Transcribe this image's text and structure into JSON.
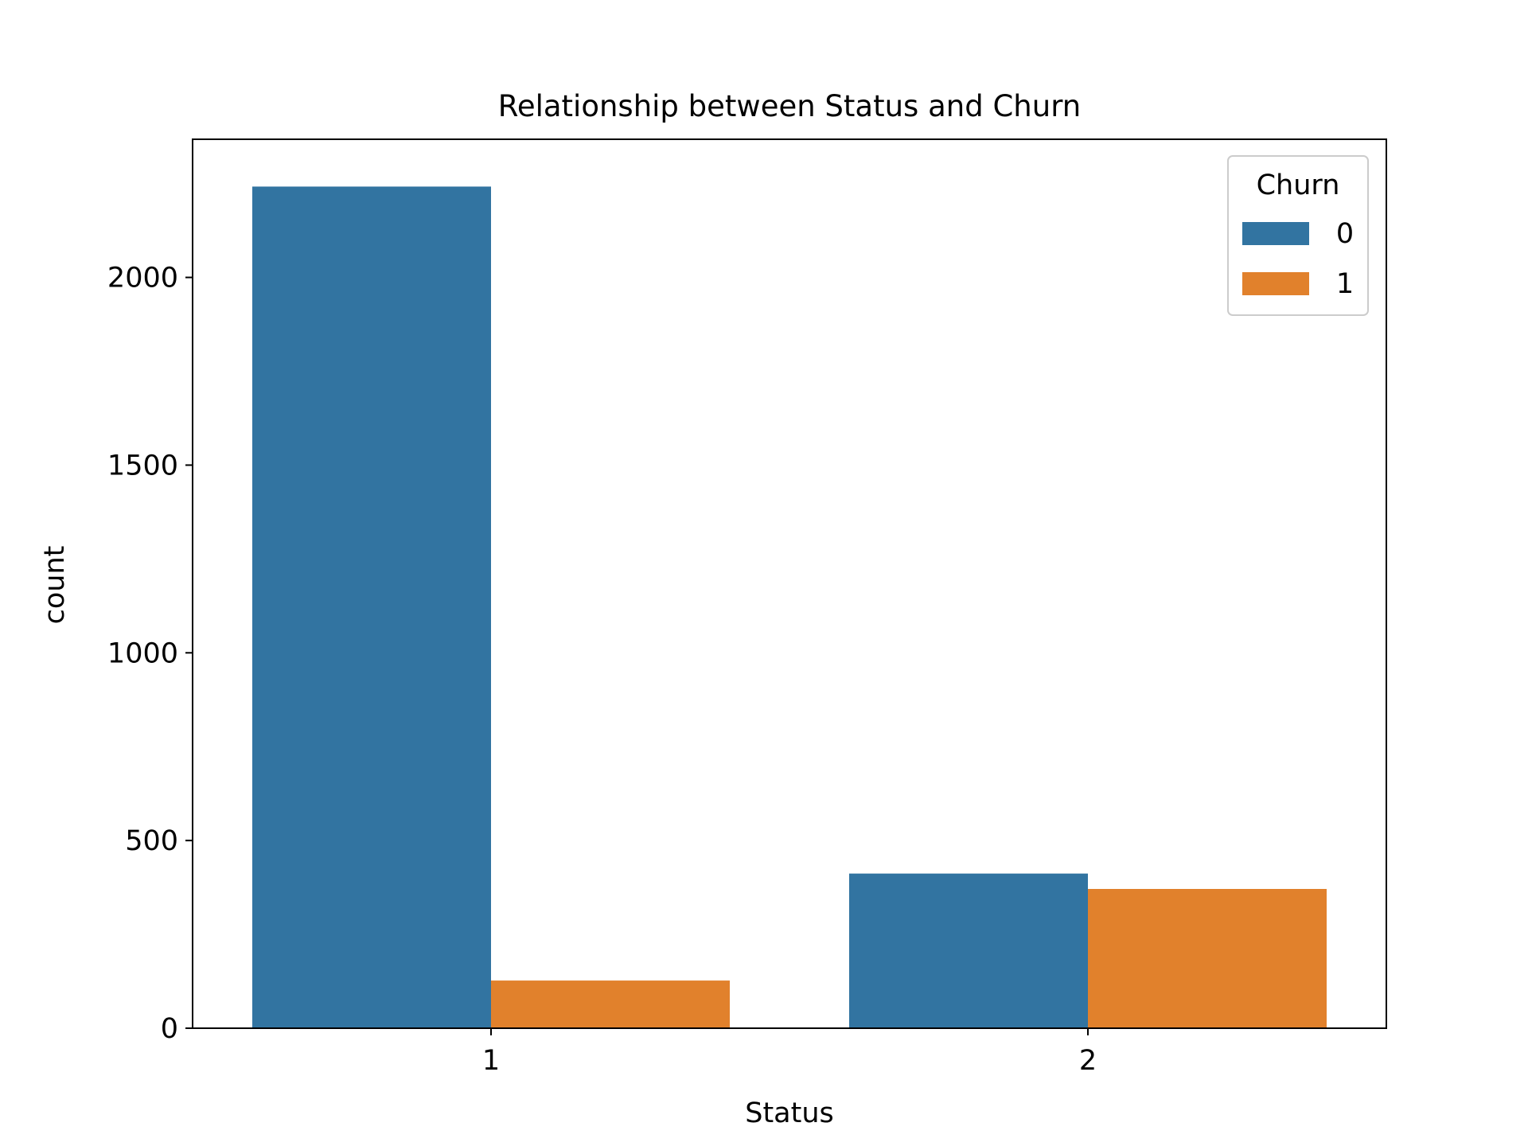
{
  "chart_data": {
    "type": "bar",
    "title": "Relationship between Status and Churn",
    "xlabel": "Status",
    "ylabel": "count",
    "categories": [
      "1",
      "2"
    ],
    "series": [
      {
        "name": "0",
        "color": "#3274a1",
        "values": [
          2242,
          412
        ]
      },
      {
        "name": "1",
        "color": "#e1812c",
        "values": [
          127,
          371
        ]
      }
    ],
    "ylim": [
      0,
      2368
    ],
    "yticks": [
      0,
      500,
      1000,
      1500,
      2000
    ],
    "legend": {
      "title": "Churn",
      "placement": "top-right"
    },
    "grid": false
  }
}
